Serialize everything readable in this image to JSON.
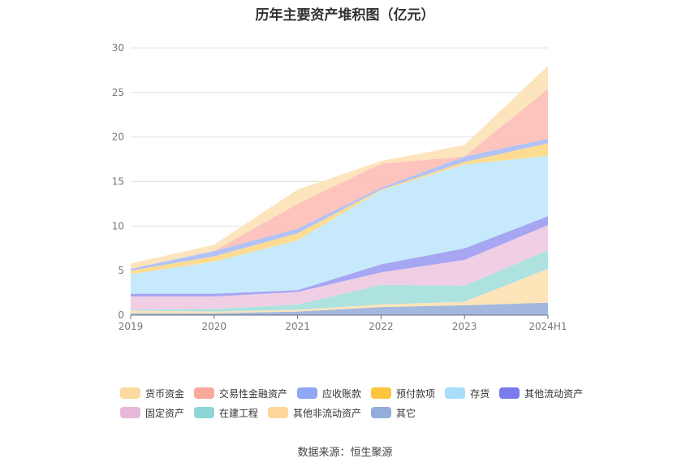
{
  "chart_data": {
    "type": "area",
    "stacked": true,
    "title": "历年主要资产堆积图（亿元）",
    "categories": [
      "2019",
      "2020",
      "2021",
      "2022",
      "2023",
      "2024H1"
    ],
    "ylim": [
      0,
      30
    ],
    "yticks": [
      0,
      5,
      10,
      15,
      20,
      25,
      30
    ],
    "grid": true,
    "legend_position": "bottom",
    "series": [
      {
        "name": "其它",
        "color": "#9DB4DC",
        "values": [
          0.2,
          0.2,
          0.4,
          0.9,
          1.1,
          1.4
        ]
      },
      {
        "name": "其他非流动资产",
        "color": "#FDE3B5",
        "values": [
          0.3,
          0.2,
          0.2,
          0.3,
          0.4,
          3.8
        ]
      },
      {
        "name": "在建工程",
        "color": "#A9E0DC",
        "values": [
          0.1,
          0.3,
          0.6,
          2.2,
          1.8,
          2.1
        ]
      },
      {
        "name": "固定资产",
        "color": "#EFCCE4",
        "values": [
          1.5,
          1.4,
          1.4,
          1.4,
          2.9,
          2.8
        ]
      },
      {
        "name": "其他流动资产",
        "color": "#A1A1F2",
        "values": [
          0.3,
          0.3,
          0.2,
          0.9,
          1.3,
          1.0
        ]
      },
      {
        "name": "存货",
        "color": "#C3E9FB",
        "values": [
          2.2,
          3.6,
          5.6,
          8.3,
          9.4,
          6.8
        ]
      },
      {
        "name": "预付款项",
        "color": "#FDDA8C",
        "values": [
          0.4,
          0.6,
          0.8,
          0.1,
          0.3,
          1.4
        ]
      },
      {
        "name": "应收账款",
        "color": "#ADBFF7",
        "values": [
          0.2,
          0.6,
          0.5,
          0.2,
          0.6,
          0.5
        ]
      },
      {
        "name": "交易性金融资产",
        "color": "#FCC1B8",
        "values": [
          0.0,
          0.0,
          2.8,
          2.7,
          0.0,
          5.6
        ]
      },
      {
        "name": "货币资金",
        "color": "#FCE3B9",
        "values": [
          0.6,
          0.7,
          1.6,
          0.3,
          1.3,
          2.6
        ]
      }
    ]
  },
  "legend": {
    "rows": [
      [
        {
          "name": "货币资金",
          "color": "#FDDA9F"
        },
        {
          "name": "交易性金融资产",
          "color": "#F9A99C"
        },
        {
          "name": "应收账款",
          "color": "#91A6F4"
        },
        {
          "name": "预付款项",
          "color": "#FCC53E"
        },
        {
          "name": "存货",
          "color": "#A8DEFA"
        },
        {
          "name": "其他流动资产",
          "color": "#7B7BEE"
        }
      ],
      [
        {
          "name": "固定资产",
          "color": "#E8B8DA"
        },
        {
          "name": "在建工程",
          "color": "#8ED6D6"
        },
        {
          "name": "其他非流动资产",
          "color": "#FDD69B"
        },
        {
          "name": "其它",
          "color": "#93AEDA"
        }
      ]
    ]
  },
  "footer": {
    "source": "数据来源：恒生聚源"
  }
}
